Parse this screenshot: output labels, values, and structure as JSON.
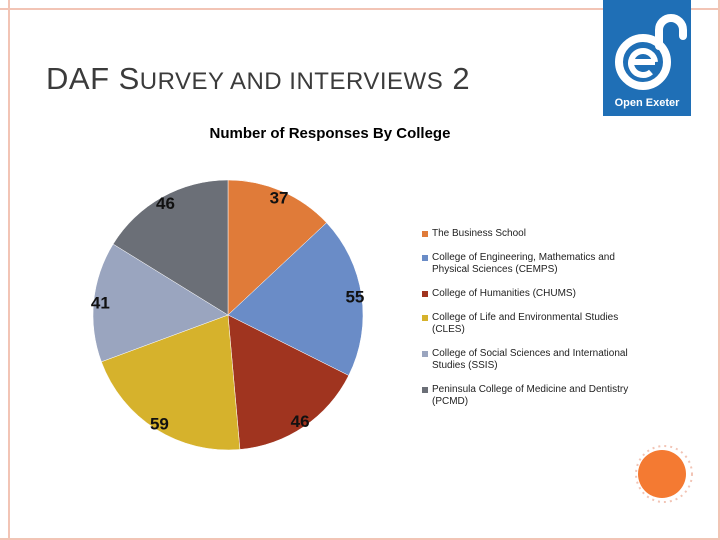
{
  "slide": {
    "title_part1": "DAF S",
    "title_part2": "URVEY AND INTERVIEWS",
    "title_part3": " 2"
  },
  "logo": {
    "text": "Open Exeter",
    "icon": "open-access-lock-e-icon"
  },
  "chart_data": {
    "type": "pie",
    "title": "Number of Responses By College",
    "categories": [
      "The Business School",
      "College of Engineering, Mathematics and Physical Sciences (CEMPS)",
      "College of Humanities (CHUMS)",
      "College of Life and Environmental Studies (CLES)",
      "College of Social Sciences and International Studies (SSIS)",
      "Peninsula College of Medicine and Dentistry (PCMD)"
    ],
    "values": [
      37,
      55,
      46,
      59,
      41,
      46
    ],
    "colors": [
      "#e07b39",
      "#6a8cc7",
      "#a0341f",
      "#d6b22c",
      "#9aa5bf",
      "#6b6f77"
    ],
    "legend_position": "right"
  }
}
